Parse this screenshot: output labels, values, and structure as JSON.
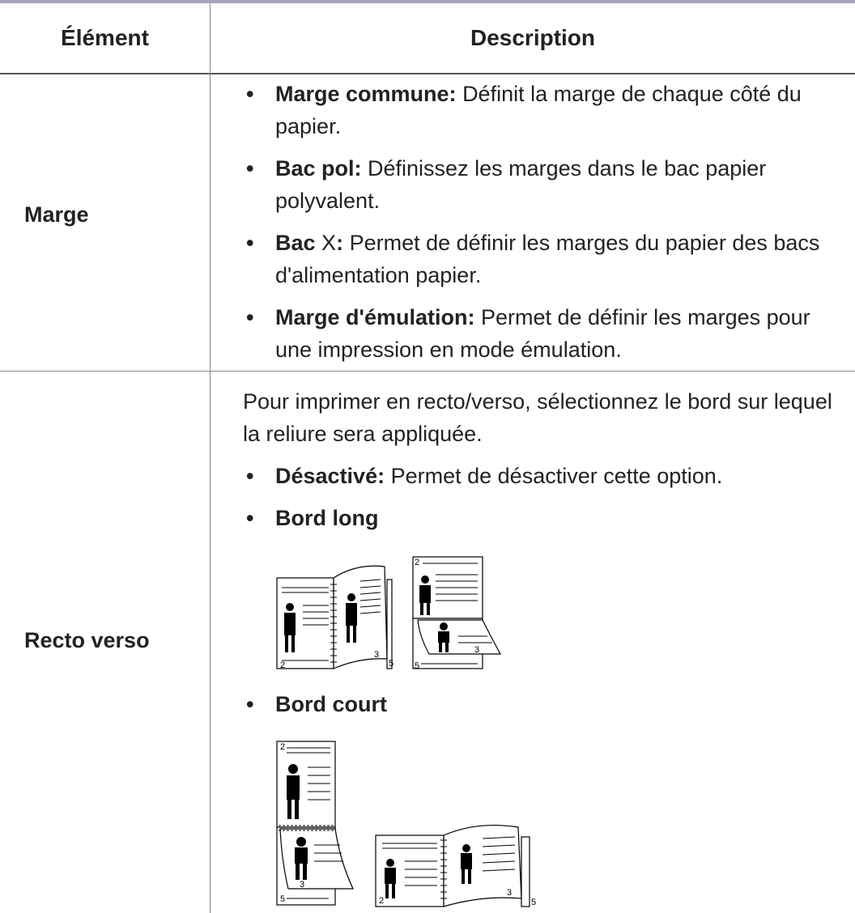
{
  "table": {
    "header": [
      "Élément",
      "Description"
    ],
    "rows": [
      {
        "item": "Marge",
        "bullets": [
          {
            "term": "Marge commune:",
            "text": "Définit la marge de chaque côté du papier."
          },
          {
            "term": "Bac pol:",
            "text": "Définissez les marges dans le bac papier polyvalent."
          },
          {
            "term": "Bac",
            "variable": "X",
            "term_end": ":",
            "text": "Permet de définir les marges du papier des bacs d'alimentation papier."
          },
          {
            "term": "Marge d'émulation:",
            "text": "Permet de définir les marges pour une impression en mode émulation."
          }
        ]
      },
      {
        "item": "Recto verso",
        "intro": "Pour imprimer en recto/verso, sélectionnez le bord sur lequel la reliure sera appliquée.",
        "bullets": [
          {
            "term": "Désactivé:",
            "text": "Permet de désactiver cette option."
          },
          {
            "term": "Bord long",
            "figure_labels": [
              "2",
              "3",
              "5",
              "2",
              "3",
              "5"
            ]
          },
          {
            "term": "Bord court",
            "figure_labels": [
              "2",
              "3",
              "5",
              "2",
              "3",
              "5"
            ]
          }
        ]
      }
    ]
  }
}
